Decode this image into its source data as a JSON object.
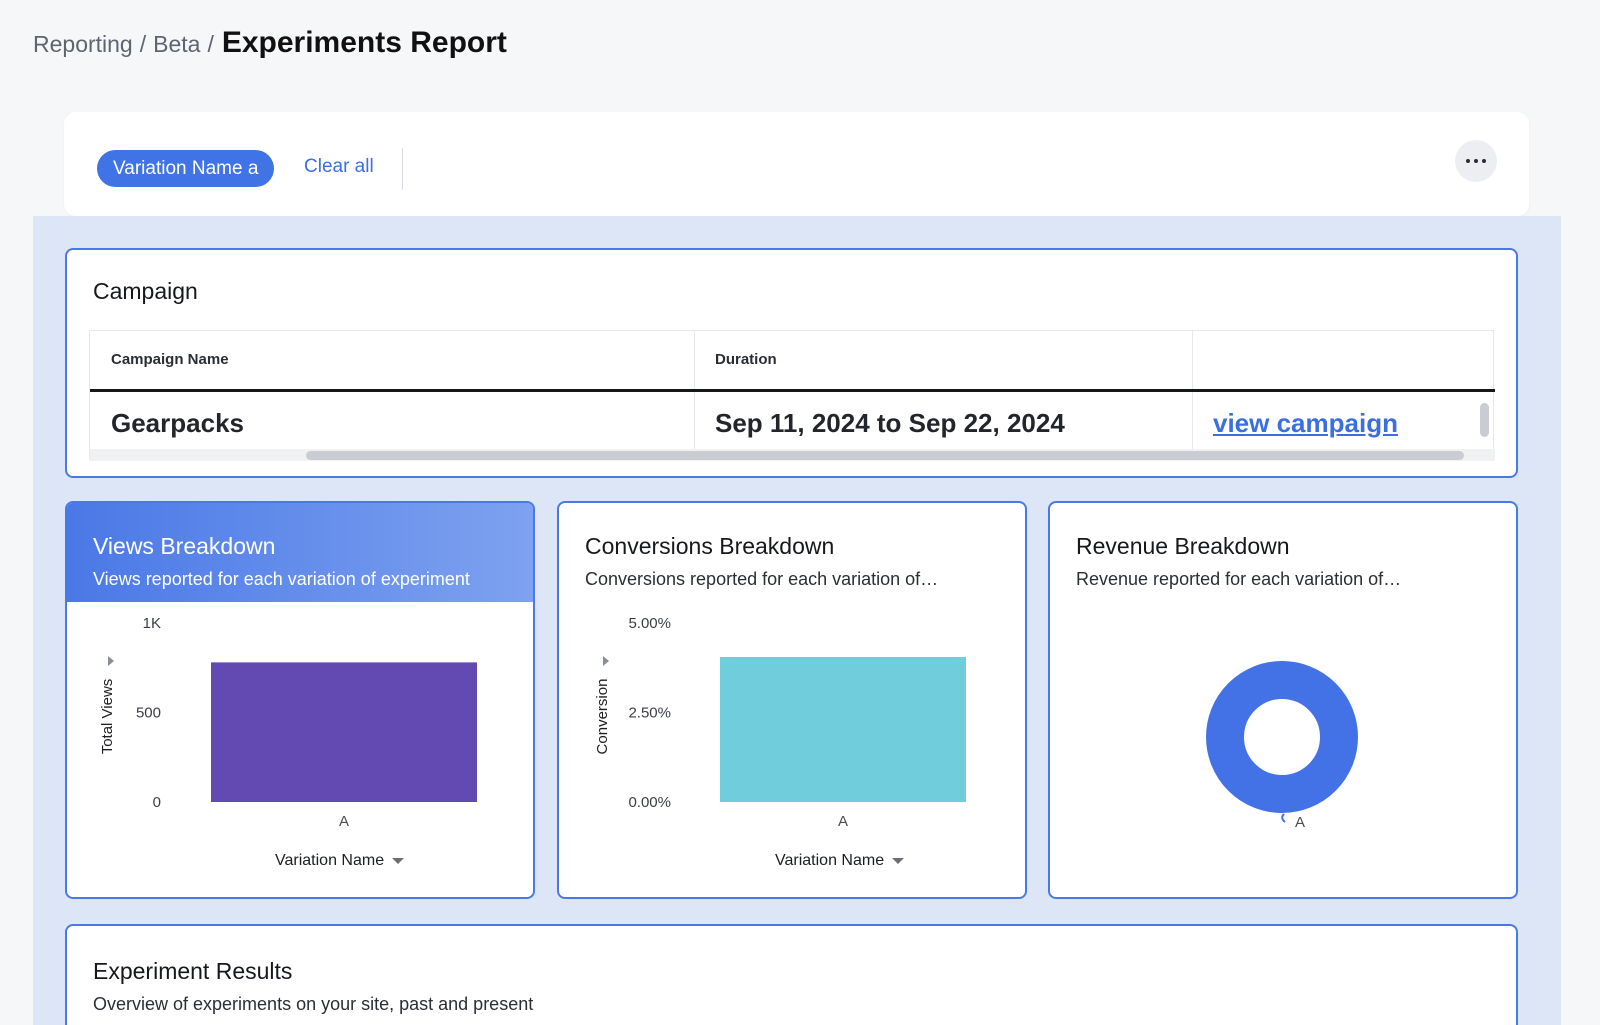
{
  "breadcrumb": {
    "root": "Reporting",
    "sep": "/",
    "parent": "Beta",
    "title": "Experiments Report"
  },
  "filters": {
    "chip_label": "Variation Name a",
    "clear_label": "Clear all",
    "more_icon": "more-horizontal-icon"
  },
  "campaign": {
    "title": "Campaign",
    "columns": [
      "Campaign Name",
      "Duration",
      ""
    ],
    "row": {
      "name": "Gearpacks",
      "duration": "Sep 11, 2024 to Sep 22, 2024",
      "link": "view campaign"
    }
  },
  "views": {
    "title": "Views Breakdown",
    "subtitle": "Views reported for each variation of experiment",
    "ylabel": "Total Views",
    "xlabel": "Variation Name"
  },
  "conversions": {
    "title": "Conversions Breakdown",
    "subtitle": "Conversions reported for each variation of…",
    "ylabel": "Conversion",
    "xlabel": "Variation Name"
  },
  "revenue": {
    "title": "Revenue Breakdown",
    "subtitle": "Revenue reported for each variation of…"
  },
  "results": {
    "title": "Experiment Results",
    "subtitle": "Overview of experiments on your site, past and present"
  },
  "chart_data": [
    {
      "type": "bar",
      "categories": [
        "A"
      ],
      "values": [
        780
      ],
      "ylim": [
        0,
        1000
      ],
      "yticks": [
        "0",
        "500",
        "1K"
      ],
      "ylabel": "Total Views",
      "xlabel": "Variation Name",
      "color": "#6349b2"
    },
    {
      "type": "bar",
      "categories": [
        "A"
      ],
      "values": [
        4.05
      ],
      "ylim": [
        0,
        5
      ],
      "yticks": [
        "0.00%",
        "2.50%",
        "5.00%"
      ],
      "ylabel": "Conversion",
      "xlabel": "Variation Name",
      "color": "#6fcddc"
    },
    {
      "type": "pie",
      "donut": true,
      "categories": [
        "A"
      ],
      "values": [
        100
      ],
      "color": "#4372e6"
    }
  ]
}
